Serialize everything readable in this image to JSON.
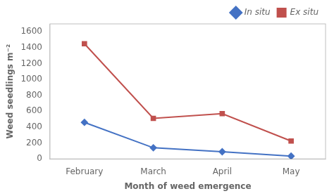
{
  "chart_data": {
    "type": "line",
    "categories": [
      "February",
      "March",
      "April",
      "May"
    ],
    "series": [
      {
        "name": "In situ",
        "color": "#4472C4",
        "marker": "diamond",
        "values": [
          460,
          140,
          90,
          35
        ]
      },
      {
        "name": "Ex situ",
        "color": "#C0504D",
        "marker": "square",
        "values": [
          1450,
          510,
          570,
          225
        ]
      }
    ],
    "xlabel": "Month of weed emergence",
    "ylabel": "Weed seedlings m⁻²",
    "ylim": [
      0,
      1700
    ],
    "yticks": [
      0,
      200,
      400,
      600,
      800,
      1000,
      1200,
      1400,
      1600
    ],
    "grid": false,
    "legend": "top"
  }
}
